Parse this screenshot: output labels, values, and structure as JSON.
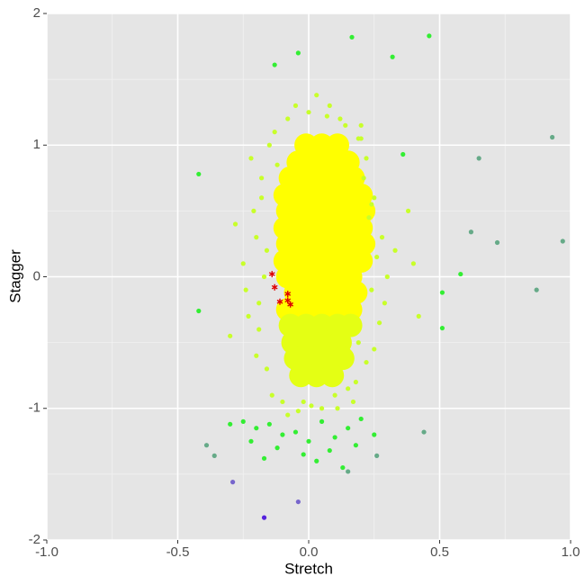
{
  "chart_data": {
    "type": "scatter",
    "x_label": "Stretch",
    "y_label": "Stagger",
    "xlim": [
      -1,
      1
    ],
    "ylim": [
      -2,
      2
    ],
    "xticks": [
      {
        "value": -1,
        "label": "-1.0"
      },
      {
        "value": -0.5,
        "label": "-0.5"
      },
      {
        "value": 0,
        "label": "0.0"
      },
      {
        "value": 0.5,
        "label": "0.5"
      },
      {
        "value": 1,
        "label": "1.0"
      }
    ],
    "yticks": [
      -2,
      -1,
      0,
      1,
      2
    ],
    "xminor": [
      -0.75,
      -0.25,
      0.25,
      0.75
    ],
    "yminor": [
      -1.5,
      -0.5,
      0.5,
      1.5
    ],
    "grid": true,
    "series": [
      {
        "color": "#ffff00",
        "x": [
          -0.01,
          0.05,
          0.11,
          -0.04,
          0.03,
          0.09,
          0.15,
          -0.07,
          -0.01,
          0.05,
          0.11,
          0.17,
          -0.09,
          -0.03,
          0.03,
          0.09,
          0.15,
          0.2,
          -0.08,
          -0.02,
          0.04,
          0.1,
          0.16,
          0.21,
          -0.09,
          -0.03,
          0.03,
          0.09,
          0.15,
          0.2,
          -0.08,
          -0.02,
          0.04,
          0.1,
          0.16,
          0.21,
          -0.09,
          -0.03,
          0.03,
          0.09,
          0.15,
          0.2,
          -0.08,
          -0.02,
          0.04,
          0.1,
          0.16,
          -0.05,
          0.01,
          0.07,
          0.13,
          0.18,
          -0.08,
          -0.02,
          0.04,
          0.1,
          0.16
        ],
        "values": [
          1.0,
          1.0,
          1.0,
          0.87,
          0.87,
          0.87,
          0.87,
          0.75,
          0.75,
          0.75,
          0.75,
          0.75,
          0.62,
          0.62,
          0.62,
          0.62,
          0.62,
          0.62,
          0.5,
          0.5,
          0.5,
          0.5,
          0.5,
          0.5,
          0.37,
          0.37,
          0.37,
          0.37,
          0.37,
          0.37,
          0.25,
          0.25,
          0.25,
          0.25,
          0.25,
          0.25,
          0.12,
          0.12,
          0.12,
          0.12,
          0.12,
          0.12,
          0,
          0,
          0,
          0,
          0,
          -0.12,
          -0.12,
          -0.12,
          -0.12,
          -0.12,
          -0.25,
          -0.25,
          -0.25,
          -0.25,
          -0.25
        ]
      },
      {
        "color": "#e4ff14",
        "x": [
          -0.07,
          -0.01,
          0.05,
          0.11,
          0.16,
          -0.06,
          0.0,
          0.06,
          0.12,
          -0.05,
          0.01,
          0.07,
          0.13,
          -0.03,
          0.03,
          0.09
        ],
        "values": [
          -0.37,
          -0.37,
          -0.37,
          -0.37,
          -0.37,
          -0.5,
          -0.5,
          -0.5,
          -0.5,
          -0.62,
          -0.62,
          -0.62,
          -0.62,
          -0.75,
          -0.75,
          -0.75
        ]
      },
      {
        "color": "#c8ff2a",
        "x": [
          -0.22,
          -0.18,
          -0.2,
          -0.15,
          -0.24,
          -0.19,
          -0.16,
          -0.21,
          -0.13,
          -0.17,
          -0.25,
          -0.2,
          -0.14,
          -0.18,
          -0.23,
          -0.12,
          -0.16,
          -0.19,
          -0.1,
          -0.08,
          0.22,
          0.25,
          0.2,
          0.28,
          0.24,
          0.19,
          0.3,
          0.23,
          0.27,
          0.21,
          0.18,
          0.26,
          0.22,
          0.29,
          0.2,
          0.24,
          0.17,
          0.25,
          0.33,
          0.38,
          -0.05,
          0.0,
          0.08,
          0.12,
          -0.02,
          0.05,
          0.1,
          0.15,
          -0.08,
          0.03,
          0.07,
          0.14,
          -0.04,
          0.01,
          0.11,
          0.19,
          0.4,
          0.42,
          -0.28,
          -0.3
        ],
        "values": [
          0.9,
          0.6,
          0.3,
          1.0,
          -0.1,
          -0.4,
          -0.7,
          0.5,
          1.1,
          0.0,
          0.1,
          -0.6,
          -0.9,
          0.75,
          -0.3,
          0.85,
          0.2,
          -0.2,
          -0.95,
          1.2,
          0.9,
          0.6,
          1.05,
          0.3,
          -0.1,
          -0.5,
          0.0,
          0.45,
          -0.35,
          0.75,
          -0.8,
          0.15,
          -0.65,
          -0.2,
          1.15,
          0.55,
          -0.95,
          -0.55,
          0.2,
          0.5,
          1.3,
          1.25,
          1.3,
          1.2,
          -0.95,
          -1.0,
          -0.9,
          -0.85,
          -1.05,
          1.38,
          1.22,
          1.15,
          -1.02,
          -0.98,
          -1.0,
          1.05,
          0.1,
          -0.3,
          0.4,
          -0.45
        ]
      },
      {
        "color": "#33ee33",
        "x": [
          -0.25,
          -0.2,
          -0.15,
          -0.1,
          -0.05,
          0,
          0.05,
          0.1,
          0.15,
          0.2,
          -0.22,
          -0.12,
          -0.02,
          0.08,
          0.18,
          -0.3,
          0.25,
          -0.17,
          0.03,
          0.13,
          0.165,
          0.46,
          -0.04,
          0.32,
          -0.13,
          -0.42,
          -0.42,
          0.51,
          0.58,
          0.51,
          0.36
        ],
        "values": [
          -1.1,
          -1.15,
          -1.12,
          -1.2,
          -1.18,
          -1.25,
          -1.1,
          -1.22,
          -1.15,
          -1.08,
          -1.25,
          -1.3,
          -1.35,
          -1.32,
          -1.28,
          -1.12,
          -1.2,
          -1.38,
          -1.4,
          -1.45,
          1.82,
          1.83,
          1.7,
          1.67,
          1.61,
          0.78,
          -0.26,
          -0.39,
          0.02,
          -0.12,
          0.93
        ]
      },
      {
        "color": "#66aa88",
        "x": [
          0.93,
          0.97,
          0.72,
          0.87,
          -0.39,
          -0.36,
          0.15,
          0.26,
          0.44,
          0.65,
          0.62
        ],
        "values": [
          1.06,
          0.27,
          0.26,
          -0.1,
          -1.28,
          -1.36,
          -1.48,
          -1.36,
          -1.18,
          0.9,
          0.34
        ]
      },
      {
        "color": "#7766cc",
        "x": [
          -0.29,
          -0.04
        ],
        "values": [
          -1.56,
          -1.71
        ]
      },
      {
        "color": "#5522dd",
        "x": [
          -0.17
        ],
        "values": [
          -1.83
        ]
      },
      {
        "color": "#dd0000",
        "marker": "asterisk",
        "x": [
          -0.14,
          -0.13,
          -0.08,
          -0.11,
          -0.08,
          -0.07
        ],
        "values": [
          0.02,
          -0.08,
          -0.13,
          -0.19,
          -0.18,
          -0.21
        ]
      }
    ]
  }
}
